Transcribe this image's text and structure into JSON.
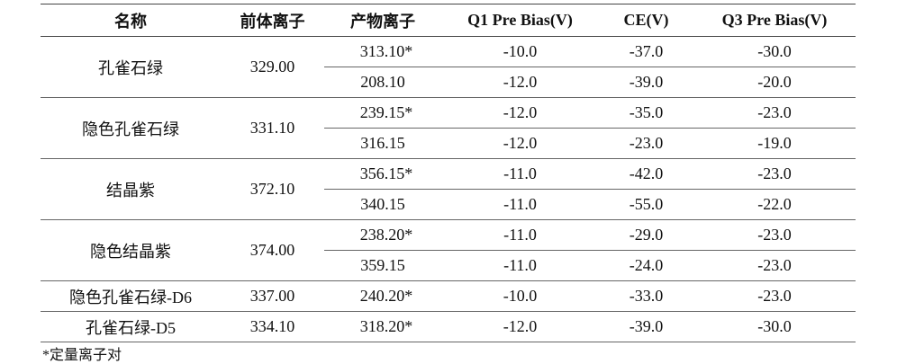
{
  "table": {
    "header": [
      "名称",
      "前体离子",
      "产物离子",
      "Q1 Pre Bias(V)",
      "CE(V)",
      "Q3 Pre Bias(V)"
    ],
    "groups": [
      {
        "name": "孔雀石绿",
        "precursor": "329.00",
        "transitions": [
          [
            "313.10*",
            "-10.0",
            "-37.0",
            "-30.0"
          ],
          [
            "208.10",
            "-12.0",
            "-39.0",
            "-20.0"
          ]
        ]
      },
      {
        "name": "隐色孔雀石绿",
        "precursor": "331.10",
        "transitions": [
          [
            "239.15*",
            "-12.0",
            "-35.0",
            "-23.0"
          ],
          [
            "316.15",
            "-12.0",
            "-23.0",
            "-19.0"
          ]
        ]
      },
      {
        "name": "结晶紫",
        "precursor": "372.10",
        "transitions": [
          [
            "356.15*",
            "-11.0",
            "-42.0",
            "-23.0"
          ],
          [
            "340.15",
            "-11.0",
            "-55.0",
            "-22.0"
          ]
        ]
      },
      {
        "name": "隐色结晶紫",
        "precursor": "374.00",
        "transitions": [
          [
            "238.20*",
            "-11.0",
            "-29.0",
            "-23.0"
          ],
          [
            "359.15",
            "-11.0",
            "-24.0",
            "-23.0"
          ]
        ]
      },
      {
        "name": "隐色孔雀石绿-D6",
        "precursor": "337.00",
        "transitions": [
          [
            "240.20*",
            "-10.0",
            "-33.0",
            "-23.0"
          ]
        ]
      },
      {
        "name": "孔雀石绿-D5",
        "precursor": "334.10",
        "transitions": [
          [
            "318.20*",
            "-12.0",
            "-39.0",
            "-30.0"
          ]
        ]
      }
    ]
  },
  "footnote": "*定量离子对"
}
